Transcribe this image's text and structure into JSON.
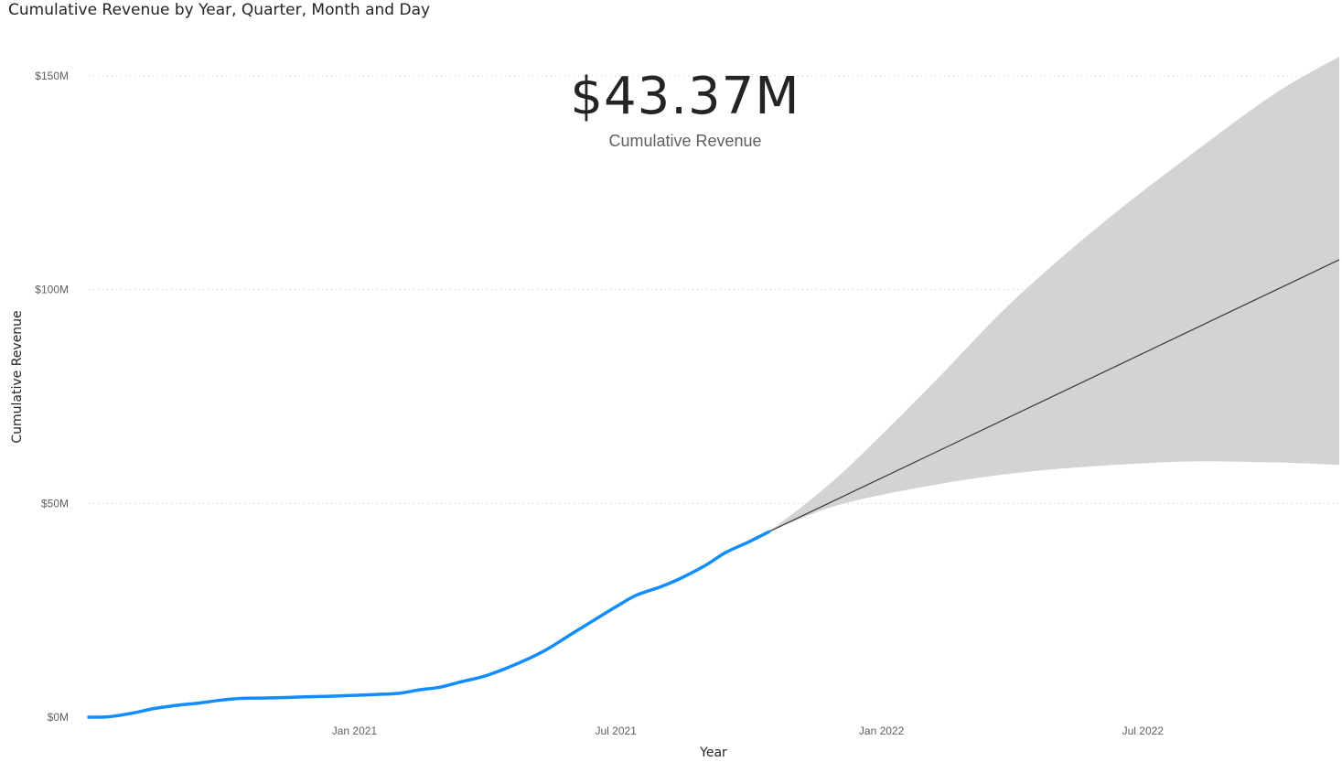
{
  "visual": {
    "title": "Cumulative Revenue by Year, Quarter, Month and Day"
  },
  "kpi": {
    "value": "$43.37M",
    "label": "Cumulative Revenue"
  },
  "colors": {
    "actual_line": "#118dff",
    "forecast_line": "#3a3a3a",
    "forecast_band": "#d3d3d3",
    "gridline": "#c8c6c4"
  },
  "chart_data": {
    "type": "line",
    "title": "Cumulative Revenue by Year, Quarter, Month and Day",
    "xlabel": "Year",
    "ylabel": "Cumulative Revenue",
    "ylim": [
      0,
      150000000
    ],
    "y_ticks": [
      {
        "value": 0,
        "label": "$0M"
      },
      {
        "value": 50000000,
        "label": "$50M"
      },
      {
        "value": 100000000,
        "label": "$100M"
      },
      {
        "value": 150000000,
        "label": "$150M"
      }
    ],
    "x_ticks": [
      {
        "date": "2021-01-01",
        "label": "Jan 2021"
      },
      {
        "date": "2021-07-01",
        "label": "Jul 2021"
      },
      {
        "date": "2022-01-01",
        "label": "Jan 2022"
      },
      {
        "date": "2022-07-01",
        "label": "Jul 2022"
      }
    ],
    "xlim": [
      "2020-07-01",
      "2022-11-14"
    ],
    "grid": true,
    "series": [
      {
        "kind": "actual",
        "points": [
          [
            "2020-07-01",
            0
          ],
          [
            "2020-07-15",
            0.1
          ],
          [
            "2020-08-01",
            1.0
          ],
          [
            "2020-08-15",
            2.0
          ],
          [
            "2020-09-01",
            2.8
          ],
          [
            "2020-09-15",
            3.3
          ],
          [
            "2020-10-01",
            4.0
          ],
          [
            "2020-10-15",
            4.4
          ],
          [
            "2020-11-01",
            4.5
          ],
          [
            "2020-11-15",
            4.6
          ],
          [
            "2020-12-01",
            4.8
          ],
          [
            "2020-12-15",
            4.9
          ],
          [
            "2021-01-01",
            5.1
          ],
          [
            "2021-01-15",
            5.3
          ],
          [
            "2021-02-01",
            5.6
          ],
          [
            "2021-02-15",
            6.4
          ],
          [
            "2021-03-01",
            7.0
          ],
          [
            "2021-03-15",
            8.2
          ],
          [
            "2021-04-01",
            9.6
          ],
          [
            "2021-04-15",
            11.3
          ],
          [
            "2021-05-01",
            13.6
          ],
          [
            "2021-05-15",
            16.0
          ],
          [
            "2021-06-01",
            19.6
          ],
          [
            "2021-06-15",
            22.5
          ],
          [
            "2021-07-01",
            25.8
          ],
          [
            "2021-07-15",
            28.5
          ],
          [
            "2021-08-01",
            30.5
          ],
          [
            "2021-08-15",
            32.5
          ],
          [
            "2021-09-01",
            35.5
          ],
          [
            "2021-09-15",
            38.5
          ],
          [
            "2021-10-01",
            41.0
          ],
          [
            "2021-10-15",
            43.37
          ]
        ]
      },
      {
        "kind": "forecast",
        "points": [
          [
            "2021-10-15",
            43.37
          ],
          [
            "2022-11-14",
            107.0
          ]
        ],
        "upper": [
          [
            "2021-10-15",
            43.37
          ],
          [
            "2021-12-01",
            56.0
          ],
          [
            "2022-02-01",
            76.5
          ],
          [
            "2022-04-01",
            97.0
          ],
          [
            "2022-06-01",
            115.0
          ],
          [
            "2022-08-01",
            131.0
          ],
          [
            "2022-10-01",
            146.0
          ],
          [
            "2022-11-14",
            154.5
          ]
        ],
        "lower": [
          [
            "2021-10-15",
            43.37
          ],
          [
            "2021-12-01",
            49.5
          ],
          [
            "2022-02-01",
            54.0
          ],
          [
            "2022-04-01",
            57.0
          ],
          [
            "2022-06-01",
            58.8
          ],
          [
            "2022-08-01",
            59.8
          ],
          [
            "2022-10-01",
            59.6
          ],
          [
            "2022-11-14",
            59.0
          ]
        ]
      }
    ],
    "value_unit": "millions USD"
  }
}
